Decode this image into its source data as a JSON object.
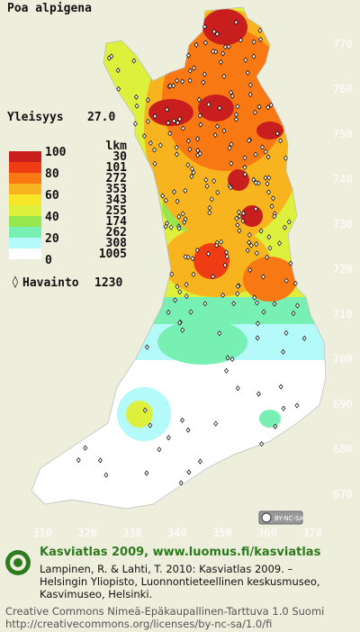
{
  "title": "Poa alpigena",
  "frequency": {
    "label": "Yleisyys",
    "value": "27.0"
  },
  "legend": {
    "scale": [
      100,
      80,
      60,
      40,
      20,
      0
    ],
    "count_header": "lkm",
    "counts": [
      30,
      101,
      272,
      353,
      343,
      255,
      174,
      262,
      308,
      1005
    ],
    "observation": {
      "label": "Havainto",
      "value": 1230
    }
  },
  "grid": {
    "north": [
      770,
      760,
      750,
      740,
      730,
      720,
      710,
      700,
      690,
      680,
      670
    ],
    "east": [
      310,
      320,
      330,
      340,
      350,
      360,
      370
    ]
  },
  "badge": "BY-NC-SA",
  "footer": {
    "heading": "Kasviatlas 2009, www.luomus.fi/kasviatlas",
    "citation": [
      "Lampinen, R. & Lahti, T. 2010: Kasviatlas 2009. –",
      "Helsingin Yliopisto, Luonnontieteellinen keskusmuseo,",
      "Kasvimuseo, Helsinki."
    ],
    "license": [
      "Creative Commons Nimeä-Epäkaupallinen-Tarttuva 1.0 Suomi",
      "http://creativecommons.org/licenses/by-nc-sa/1.0/fi"
    ]
  }
}
